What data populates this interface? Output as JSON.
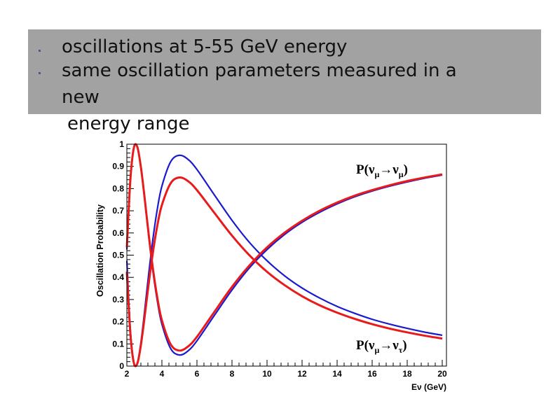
{
  "slide": {
    "bullets": [
      "oscillations at 5-55 GeV energy",
      "same oscillation parameters measured in a new",
      "energy range"
    ],
    "bullet2_line1": "same oscillation parameters measured in a",
    "bullet2_line2": "new"
  },
  "chart_data": {
    "type": "line",
    "xlabel": "Eν (GeV)",
    "xlabel_main": "E",
    "xlabel_sub": "ν",
    "xlabel_unit": "(GeV)",
    "ylabel": "Oscillation Probability",
    "xlim": [
      2,
      20
    ],
    "ylim": [
      0,
      1
    ],
    "xticks": [
      "2",
      "4",
      "6",
      "8",
      "10",
      "12",
      "14",
      "16",
      "18",
      "20"
    ],
    "yticks": [
      "0",
      "0.1",
      "0.2",
      "0.3",
      "0.4",
      "0.5",
      "0.6",
      "0.7",
      "0.8",
      "0.9",
      "1"
    ],
    "annotations": {
      "survival": {
        "P": "P(",
        "nu": "ν",
        "mu": "μ",
        "arrow": "→",
        "sub2": "μ",
        "close": ")"
      },
      "appearance": {
        "P": "P(",
        "nu": "ν",
        "mu": "μ",
        "arrow": "→",
        "sub2": "τ",
        "close": ")"
      }
    },
    "x": [
      2,
      2.2,
      2.4,
      2.6,
      2.8,
      3,
      3.25,
      3.5,
      3.75,
      4,
      4.5,
      5,
      5.5,
      6,
      7,
      8,
      9,
      10,
      11,
      12,
      13,
      14,
      15,
      16,
      17,
      18,
      19,
      20
    ],
    "series": [
      {
        "name": "P(numu->numu) blue",
        "color": "#1a1ad0",
        "values": [
          0.525,
          0.836,
          0.984,
          0.986,
          0.895,
          0.763,
          0.582,
          0.42,
          0.288,
          0.189,
          0.079,
          0.05,
          0.069,
          0.114,
          0.229,
          0.343,
          0.443,
          0.525,
          0.593,
          0.648,
          0.693,
          0.731,
          0.763,
          0.789,
          0.811,
          0.83,
          0.847,
          0.861
        ]
      },
      {
        "name": "P(numu->nutau) blue",
        "color": "#1a1ad0",
        "values": [
          0.475,
          0.164,
          0.016,
          0.014,
          0.105,
          0.238,
          0.418,
          0.58,
          0.713,
          0.811,
          0.921,
          0.95,
          0.931,
          0.886,
          0.771,
          0.657,
          0.557,
          0.475,
          0.407,
          0.352,
          0.307,
          0.269,
          0.238,
          0.211,
          0.189,
          0.17,
          0.153,
          0.139
        ]
      },
      {
        "name": "P(numu->numu) red",
        "color": "#e81a1a",
        "values": [
          0.535,
          0.839,
          0.984,
          0.987,
          0.897,
          0.768,
          0.591,
          0.432,
          0.303,
          0.206,
          0.098,
          0.07,
          0.089,
          0.132,
          0.245,
          0.357,
          0.454,
          0.535,
          0.601,
          0.655,
          0.7,
          0.737,
          0.768,
          0.793,
          0.815,
          0.834,
          0.85,
          0.864
        ]
      },
      {
        "name": "P(numu->nutau) red",
        "color": "#e81a1a",
        "values": [
          0.425,
          0.147,
          0.014,
          0.012,
          0.094,
          0.213,
          0.374,
          0.519,
          0.638,
          0.726,
          0.824,
          0.85,
          0.833,
          0.793,
          0.69,
          0.588,
          0.499,
          0.425,
          0.365,
          0.315,
          0.274,
          0.241,
          0.213,
          0.189,
          0.169,
          0.152,
          0.137,
          0.124
        ]
      }
    ]
  }
}
